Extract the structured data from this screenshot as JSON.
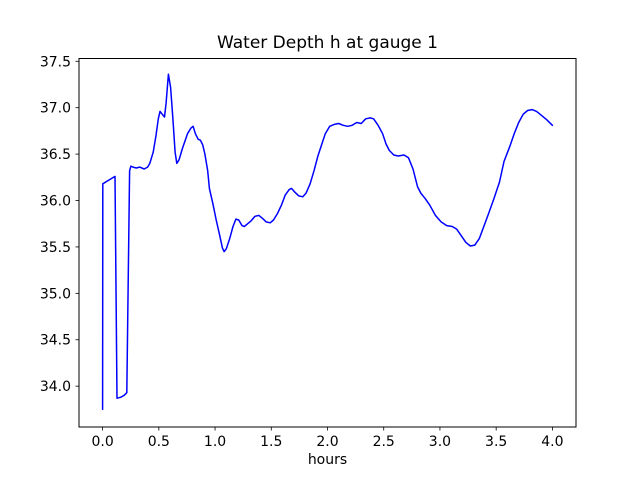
{
  "figure": {
    "title": "Water Depth h at gauge 1",
    "xlabel": "hours"
  },
  "chart_data": {
    "type": "line",
    "title": "Water Depth h at gauge 1",
    "xlabel": "hours",
    "ylabel": "",
    "grid": false,
    "legend": false,
    "line_color": "#0000ff",
    "xlim": [
      -0.21,
      4.21
    ],
    "ylim": [
      33.56,
      37.53
    ],
    "x_ticks": [
      0.0,
      0.5,
      1.0,
      1.5,
      2.0,
      2.5,
      3.0,
      3.5,
      4.0
    ],
    "y_ticks": [
      34.0,
      34.5,
      35.0,
      35.5,
      36.0,
      36.5,
      37.0,
      37.5
    ],
    "series": [
      {
        "name": "h",
        "color": "#0000ff",
        "points": [
          [
            0.0,
            33.75
          ],
          [
            0.002,
            36.18
          ],
          [
            0.055,
            36.22
          ],
          [
            0.11,
            36.26
          ],
          [
            0.128,
            33.87
          ],
          [
            0.16,
            33.88
          ],
          [
            0.19,
            33.9
          ],
          [
            0.215,
            33.93
          ],
          [
            0.24,
            36.32
          ],
          [
            0.252,
            36.37
          ],
          [
            0.27,
            36.36
          ],
          [
            0.3,
            36.35
          ],
          [
            0.33,
            36.36
          ],
          [
            0.37,
            36.34
          ],
          [
            0.4,
            36.36
          ],
          [
            0.42,
            36.4
          ],
          [
            0.45,
            36.52
          ],
          [
            0.475,
            36.7
          ],
          [
            0.495,
            36.88
          ],
          [
            0.51,
            36.96
          ],
          [
            0.53,
            36.93
          ],
          [
            0.55,
            36.9
          ],
          [
            0.565,
            37.05
          ],
          [
            0.585,
            37.36
          ],
          [
            0.605,
            37.22
          ],
          [
            0.625,
            36.88
          ],
          [
            0.645,
            36.52
          ],
          [
            0.66,
            36.4
          ],
          [
            0.68,
            36.44
          ],
          [
            0.71,
            36.56
          ],
          [
            0.755,
            36.72
          ],
          [
            0.785,
            36.78
          ],
          [
            0.805,
            36.8
          ],
          [
            0.825,
            36.72
          ],
          [
            0.85,
            36.66
          ],
          [
            0.87,
            36.65
          ],
          [
            0.89,
            36.6
          ],
          [
            0.91,
            36.5
          ],
          [
            0.935,
            36.32
          ],
          [
            0.95,
            36.13
          ],
          [
            0.98,
            35.97
          ],
          [
            1.01,
            35.79
          ],
          [
            1.04,
            35.63
          ],
          [
            1.065,
            35.49
          ],
          [
            1.08,
            35.45
          ],
          [
            1.1,
            35.48
          ],
          [
            1.13,
            35.59
          ],
          [
            1.16,
            35.72
          ],
          [
            1.185,
            35.8
          ],
          [
            1.21,
            35.79
          ],
          [
            1.24,
            35.73
          ],
          [
            1.26,
            35.72
          ],
          [
            1.29,
            35.75
          ],
          [
            1.32,
            35.78
          ],
          [
            1.355,
            35.83
          ],
          [
            1.39,
            35.84
          ],
          [
            1.42,
            35.81
          ],
          [
            1.455,
            35.77
          ],
          [
            1.49,
            35.76
          ],
          [
            1.52,
            35.79
          ],
          [
            1.555,
            35.86
          ],
          [
            1.59,
            35.95
          ],
          [
            1.625,
            36.06
          ],
          [
            1.66,
            36.12
          ],
          [
            1.68,
            36.13
          ],
          [
            1.71,
            36.09
          ],
          [
            1.745,
            36.05
          ],
          [
            1.78,
            36.04
          ],
          [
            1.81,
            36.08
          ],
          [
            1.845,
            36.18
          ],
          [
            1.88,
            36.32
          ],
          [
            1.915,
            36.48
          ],
          [
            1.95,
            36.61
          ],
          [
            1.98,
            36.72
          ],
          [
            2.02,
            36.8
          ],
          [
            2.06,
            36.82
          ],
          [
            2.1,
            36.83
          ],
          [
            2.14,
            36.81
          ],
          [
            2.18,
            36.8
          ],
          [
            2.22,
            36.81
          ],
          [
            2.26,
            36.84
          ],
          [
            2.3,
            36.83
          ],
          [
            2.34,
            36.88
          ],
          [
            2.38,
            36.89
          ],
          [
            2.41,
            36.88
          ],
          [
            2.45,
            36.81
          ],
          [
            2.49,
            36.72
          ],
          [
            2.52,
            36.61
          ],
          [
            2.55,
            36.54
          ],
          [
            2.59,
            36.49
          ],
          [
            2.63,
            36.48
          ],
          [
            2.68,
            36.49
          ],
          [
            2.72,
            36.46
          ],
          [
            2.76,
            36.34
          ],
          [
            2.8,
            36.15
          ],
          [
            2.83,
            36.08
          ],
          [
            2.87,
            36.02
          ],
          [
            2.91,
            35.95
          ],
          [
            2.96,
            35.84
          ],
          [
            3.01,
            35.77
          ],
          [
            3.06,
            35.73
          ],
          [
            3.11,
            35.72
          ],
          [
            3.15,
            35.69
          ],
          [
            3.19,
            35.62
          ],
          [
            3.23,
            35.55
          ],
          [
            3.27,
            35.51
          ],
          [
            3.31,
            35.52
          ],
          [
            3.35,
            35.59
          ],
          [
            3.39,
            35.72
          ],
          [
            3.43,
            35.85
          ],
          [
            3.48,
            36.02
          ],
          [
            3.53,
            36.2
          ],
          [
            3.57,
            36.42
          ],
          [
            3.62,
            36.58
          ],
          [
            3.66,
            36.72
          ],
          [
            3.7,
            36.84
          ],
          [
            3.74,
            36.93
          ],
          [
            3.78,
            36.97
          ],
          [
            3.82,
            36.98
          ],
          [
            3.86,
            36.96
          ],
          [
            3.9,
            36.92
          ],
          [
            3.95,
            36.87
          ],
          [
            4.0,
            36.81
          ]
        ]
      }
    ]
  }
}
